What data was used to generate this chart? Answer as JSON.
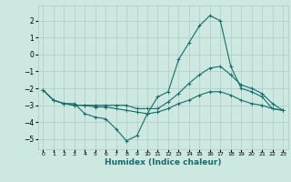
{
  "xlabel": "Humidex (Indice chaleur)",
  "ylabel": "",
  "bg_color": "#cce8e0",
  "grid_color": "#aaccc4",
  "line_color": "#1a6b6b",
  "xlim": [
    -0.5,
    23.5
  ],
  "ylim": [
    -5.6,
    2.9
  ],
  "xticks": [
    0,
    1,
    2,
    3,
    4,
    5,
    6,
    7,
    8,
    9,
    10,
    11,
    12,
    13,
    14,
    15,
    16,
    17,
    18,
    19,
    20,
    21,
    22,
    23
  ],
  "yticks": [
    -5,
    -4,
    -3,
    -2,
    -1,
    0,
    1,
    2
  ],
  "series": [
    {
      "x": [
        0,
        1,
        2,
        3,
        4,
        5,
        6,
        7,
        8,
        9,
        10,
        11,
        12,
        13,
        14,
        15,
        16,
        17,
        18,
        19,
        20,
        21,
        22,
        23
      ],
      "y": [
        -2.1,
        -2.7,
        -2.9,
        -2.9,
        -3.5,
        -3.7,
        -3.8,
        -4.4,
        -5.1,
        -4.8,
        -3.5,
        -2.5,
        -2.2,
        -0.3,
        0.7,
        1.7,
        2.3,
        2.0,
        -0.7,
        -2.0,
        -2.2,
        -2.5,
        -3.2,
        -3.3
      ]
    },
    {
      "x": [
        0,
        1,
        2,
        3,
        4,
        5,
        6,
        7,
        8,
        9,
        10,
        11,
        12,
        13,
        14,
        15,
        16,
        17,
        18,
        19,
        20,
        21,
        22,
        23
      ],
      "y": [
        -2.1,
        -2.7,
        -2.9,
        -3.0,
        -3.0,
        -3.0,
        -3.0,
        -3.0,
        -3.0,
        -3.2,
        -3.2,
        -3.2,
        -2.8,
        -2.3,
        -1.7,
        -1.2,
        -0.8,
        -0.7,
        -1.2,
        -1.8,
        -2.0,
        -2.3,
        -2.9,
        -3.3
      ]
    },
    {
      "x": [
        0,
        1,
        2,
        3,
        4,
        5,
        6,
        7,
        8,
        9,
        10,
        11,
        12,
        13,
        14,
        15,
        16,
        17,
        18,
        19,
        20,
        21,
        22,
        23
      ],
      "y": [
        -2.1,
        -2.7,
        -2.9,
        -3.0,
        -3.0,
        -3.1,
        -3.1,
        -3.2,
        -3.3,
        -3.4,
        -3.5,
        -3.4,
        -3.2,
        -2.9,
        -2.7,
        -2.4,
        -2.2,
        -2.2,
        -2.4,
        -2.7,
        -2.9,
        -3.0,
        -3.2,
        -3.3
      ]
    }
  ]
}
